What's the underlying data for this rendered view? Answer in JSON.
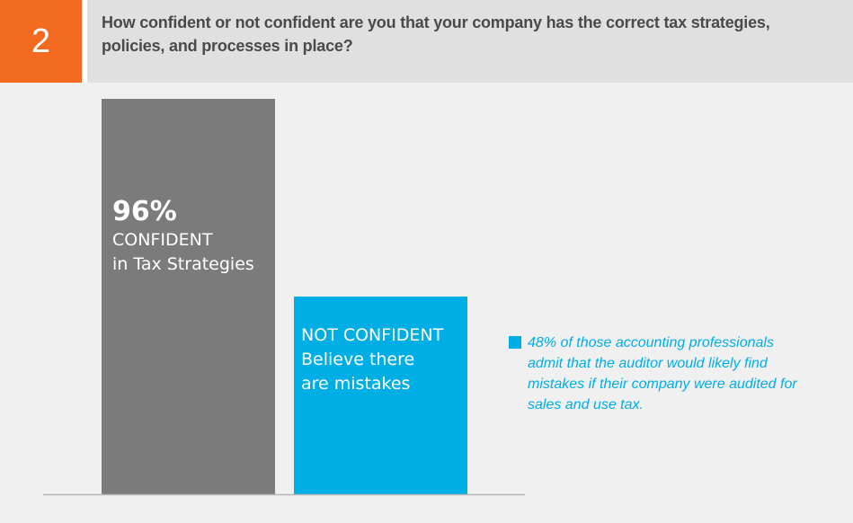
{
  "header": {
    "number": "2",
    "question": "How confident or not confident are you that your company has the correct tax strategies, policies, and processes in place?"
  },
  "colors": {
    "orange_accent": "#f26b21",
    "confident_gray": "#7b7b7b",
    "not_confident_blue": "#00aee6",
    "panel_bg": "#f0f0f0",
    "header_bg": "#e0e0e0"
  },
  "chart_data": {
    "type": "bar",
    "title": "",
    "xlabel": "",
    "ylabel": "",
    "ylim": [
      0,
      100
    ],
    "grid": false,
    "categories": [
      "CONFIDENT in Tax Strategies",
      "NOT CONFIDENT Believe there are mistakes"
    ],
    "values": [
      96,
      48
    ],
    "bars": [
      {
        "value": 96,
        "value_label": "96%",
        "label_lines": [
          "CONFIDENT",
          "in Tax Strategies"
        ],
        "color": "#7b7b7b"
      },
      {
        "value": 48,
        "value_label": "",
        "label_lines": [
          "NOT CONFIDENT",
          "Believe there",
          "are mistakes"
        ],
        "color": "#00aee6"
      }
    ],
    "annotation": "48% of those accounting professionals admit that the auditor would likely find mistakes if their company were audited for sales and use tax."
  }
}
